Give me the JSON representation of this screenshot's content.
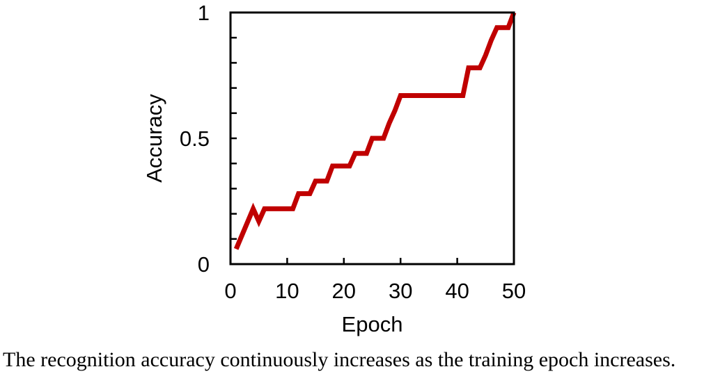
{
  "chart_data": {
    "type": "line",
    "title": "",
    "xlabel": "Epoch",
    "ylabel": "Accuracy",
    "xlim": [
      0,
      50
    ],
    "ylim": [
      0,
      1
    ],
    "x_ticks": [
      0,
      10,
      20,
      30,
      40,
      50
    ],
    "x_tick_labels": [
      "0",
      "10",
      "20",
      "30",
      "40",
      "50"
    ],
    "y_ticks": [
      0,
      0.5,
      1
    ],
    "y_tick_labels": [
      "0",
      "0.5",
      "1"
    ],
    "y_minor_step": 0.1,
    "grid": false,
    "legend": "none",
    "series": [
      {
        "color": "#c00000",
        "x": [
          1,
          4,
          5,
          6,
          7,
          8,
          9,
          10,
          11,
          12,
          13,
          14,
          15,
          16,
          17,
          18,
          19,
          20,
          21,
          22,
          23,
          24,
          25,
          26,
          27,
          28,
          29,
          30,
          31,
          32,
          33,
          34,
          35,
          36,
          37,
          38,
          39,
          40,
          41,
          42,
          43,
          44,
          45,
          46,
          47,
          48,
          49,
          50
        ],
        "y": [
          0.06,
          0.22,
          0.17,
          0.22,
          0.22,
          0.22,
          0.22,
          0.22,
          0.22,
          0.28,
          0.28,
          0.28,
          0.33,
          0.33,
          0.33,
          0.39,
          0.39,
          0.39,
          0.39,
          0.44,
          0.44,
          0.44,
          0.5,
          0.5,
          0.5,
          0.56,
          0.61,
          0.67,
          0.67,
          0.67,
          0.67,
          0.67,
          0.67,
          0.67,
          0.67,
          0.67,
          0.67,
          0.67,
          0.67,
          0.78,
          0.78,
          0.78,
          0.83,
          0.89,
          0.94,
          0.94,
          0.94,
          1.0
        ]
      }
    ]
  },
  "caption": "The recognition accuracy continuously increases as the training epoch increases."
}
